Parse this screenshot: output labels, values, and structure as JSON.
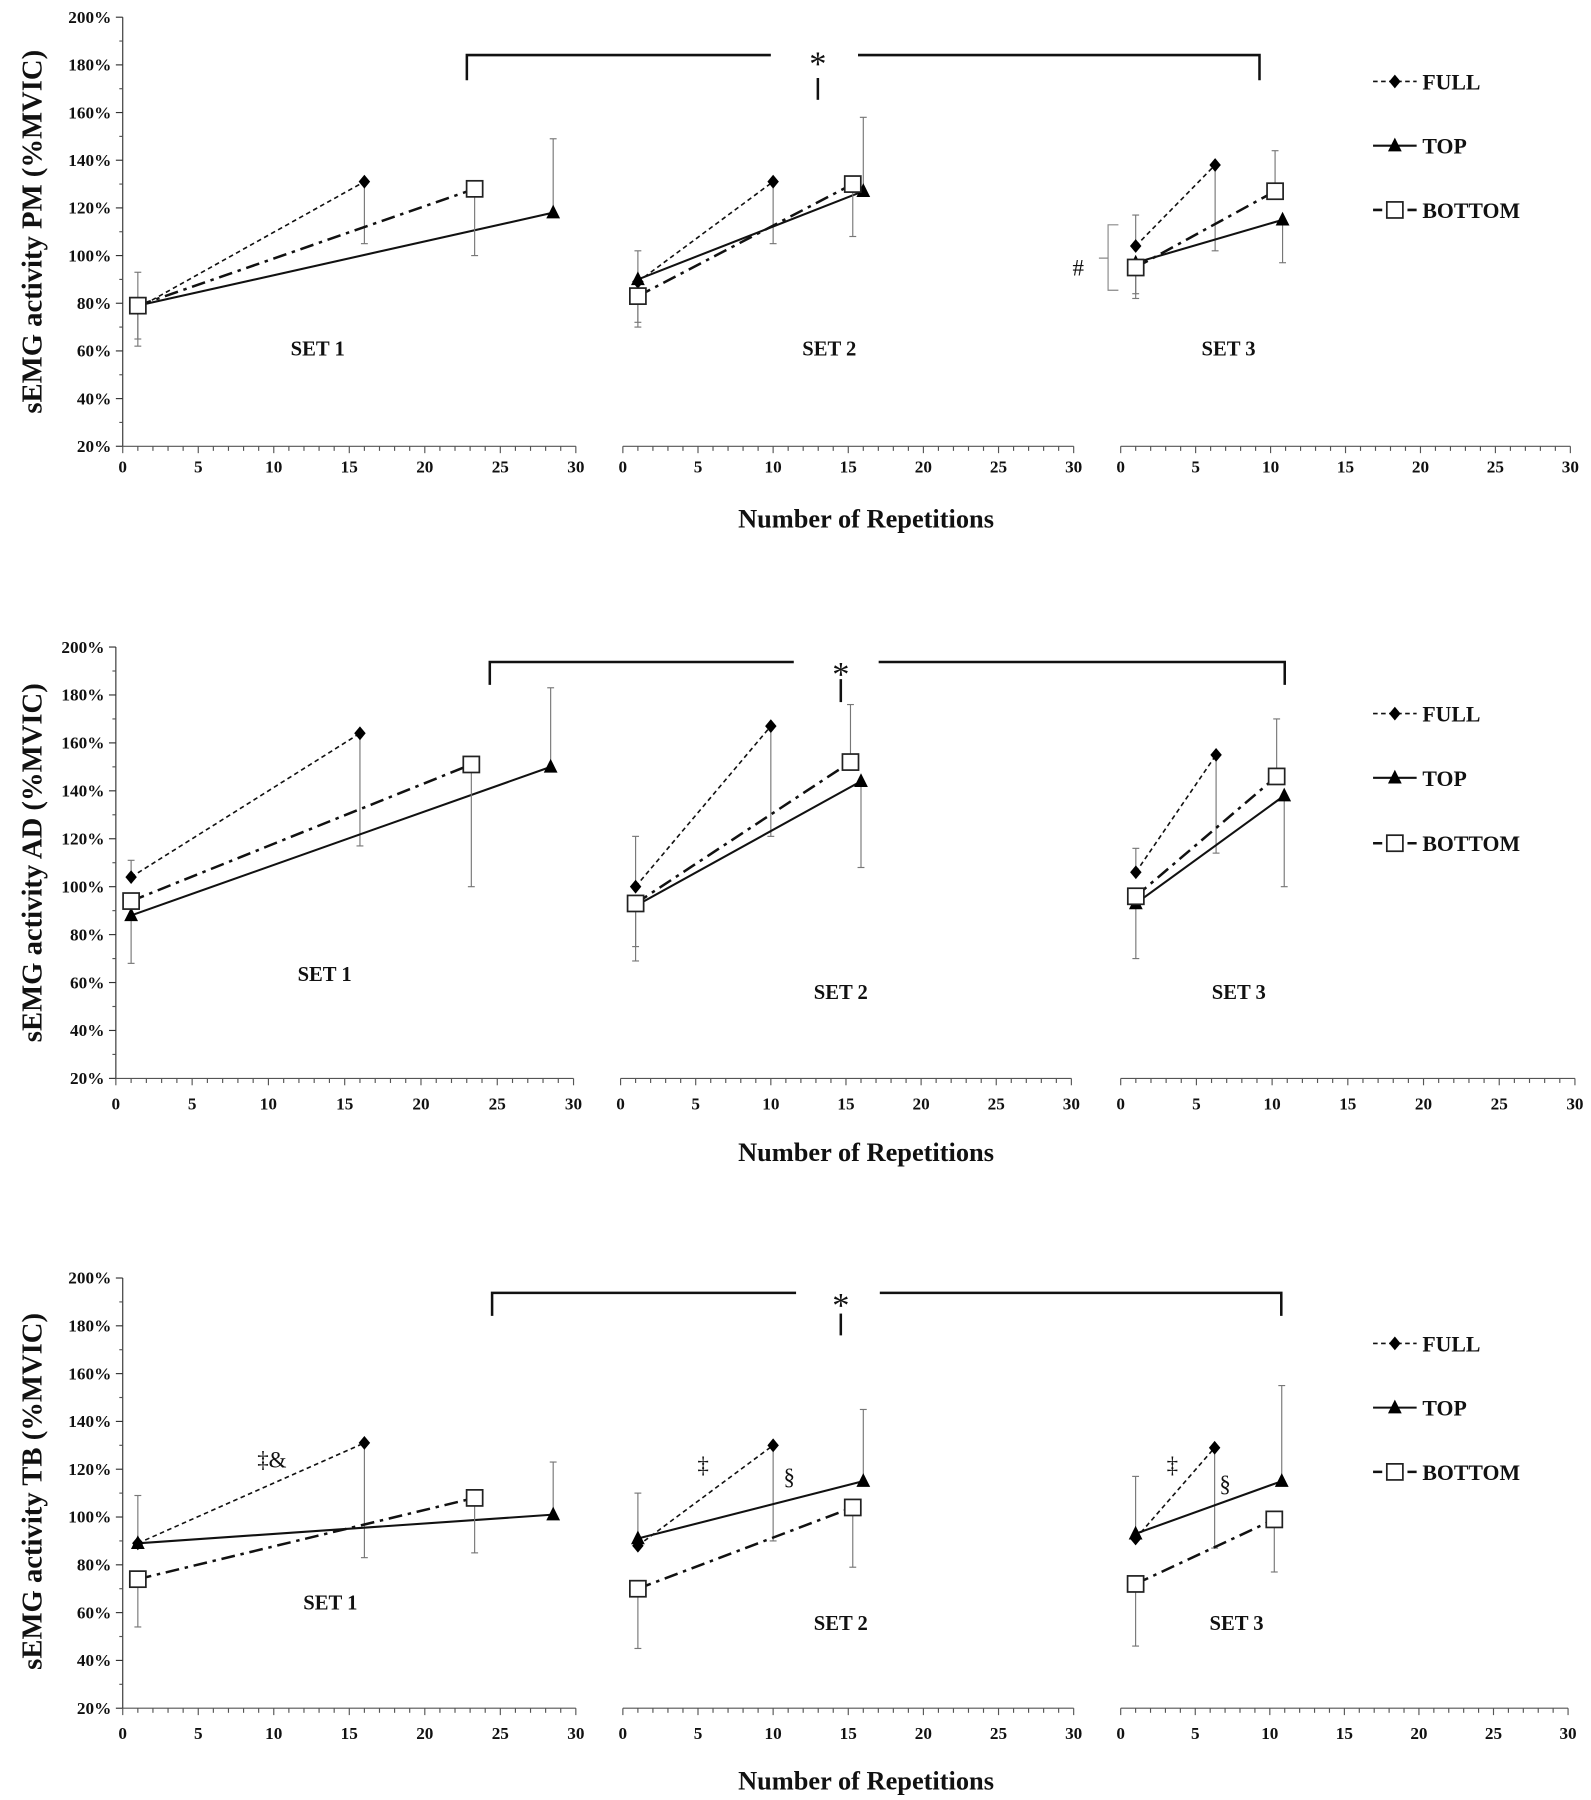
{
  "chart_data": [
    {
      "type": "line",
      "ylabel": "sEMG activity PM (%MVIC)",
      "xlabel": "Number of Repetitions",
      "ylim": [
        20,
        200
      ],
      "yticks": [
        "20%",
        "40%",
        "60%",
        "80%",
        "100%",
        "120%",
        "140%",
        "160%",
        "180%",
        "200%"
      ],
      "xlim": [
        0,
        30
      ],
      "xticks": [
        "0",
        "5",
        "10",
        "15",
        "20",
        "25",
        "30"
      ],
      "legend": [
        "FULL",
        "TOP",
        "BOTTOM"
      ],
      "legend_placement": "right",
      "significance": "*",
      "annotations": [
        {
          "text": "#",
          "set": 3
        }
      ],
      "sets": [
        {
          "label": "SET 1",
          "series": [
            {
              "name": "FULL",
              "x": [
                1,
                16
              ],
              "y": [
                78,
                131
              ],
              "err": [
                [
                  16,
                  105
                ]
              ]
            },
            {
              "name": "TOP",
              "x": [
                1,
                28.5
              ],
              "y": [
                79,
                118
              ],
              "err": [
                [
                  28.5,
                  149
                ]
              ]
            },
            {
              "name": "BOTTOM",
              "x": [
                1,
                23.3
              ],
              "y": [
                79,
                128
              ],
              "err": [
                [
                  1,
                  93
                ],
                [
                  1,
                  62
                ],
                [
                  1,
                  65
                ],
                [
                  23.3,
                  100
                ]
              ]
            }
          ]
        },
        {
          "label": "SET 2",
          "series": [
            {
              "name": "FULL",
              "x": [
                1,
                10
              ],
              "y": [
                89,
                131
              ],
              "err": [
                [
                  1,
                  102
                ],
                [
                  10,
                  105
                ]
              ]
            },
            {
              "name": "TOP",
              "x": [
                1,
                16
              ],
              "y": [
                90,
                127
              ],
              "err": [
                [
                  16,
                  158
                ]
              ]
            },
            {
              "name": "BOTTOM",
              "x": [
                1,
                15.3
              ],
              "y": [
                83,
                130
              ],
              "err": [
                [
                  1,
                  70
                ],
                [
                  1,
                  72
                ],
                [
                  15.3,
                  108
                ]
              ]
            }
          ]
        },
        {
          "label": "SET 3",
          "series": [
            {
              "name": "FULL",
              "x": [
                1,
                6.3
              ],
              "y": [
                104,
                138
              ],
              "err": [
                [
                  1,
                  117
                ],
                [
                  6.3,
                  102
                ]
              ]
            },
            {
              "name": "TOP",
              "x": [
                1,
                10.8
              ],
              "y": [
                97,
                115
              ],
              "err": [
                [
                  10.8,
                  97
                ]
              ]
            },
            {
              "name": "BOTTOM",
              "x": [
                1,
                10.3
              ],
              "y": [
                95,
                127
              ],
              "err": [
                [
                  1,
                  82
                ],
                [
                  1,
                  84
                ],
                [
                  10.3,
                  144
                ]
              ]
            }
          ]
        }
      ]
    },
    {
      "type": "line",
      "ylabel": "sEMG activity AD (%MVIC)",
      "xlabel": "Number of Repetitions",
      "ylim": [
        20,
        200
      ],
      "yticks": [
        "20%",
        "40%",
        "60%",
        "80%",
        "100%",
        "120%",
        "140%",
        "160%",
        "180%",
        "200%"
      ],
      "xlim": [
        0,
        30
      ],
      "xticks": [
        "0",
        "5",
        "10",
        "15",
        "20",
        "25",
        "30"
      ],
      "legend": [
        "FULL",
        "TOP",
        "BOTTOM"
      ],
      "legend_placement": "right",
      "significance": "*",
      "annotations": [],
      "sets": [
        {
          "label": "SET 1",
          "series": [
            {
              "name": "FULL",
              "x": [
                1,
                16
              ],
              "y": [
                104,
                164
              ],
              "err": [
                [
                  1,
                  111
                ],
                [
                  16,
                  117
                ]
              ]
            },
            {
              "name": "TOP",
              "x": [
                1,
                28.5
              ],
              "y": [
                88,
                150
              ],
              "err": [
                [
                  28.5,
                  183
                ]
              ]
            },
            {
              "name": "BOTTOM",
              "x": [
                1,
                23.3
              ],
              "y": [
                94,
                151
              ],
              "err": [
                [
                  1,
                  68
                ],
                [
                  23.3,
                  100
                ]
              ]
            }
          ]
        },
        {
          "label": "SET 2",
          "series": [
            {
              "name": "FULL",
              "x": [
                1,
                10
              ],
              "y": [
                100,
                167
              ],
              "err": [
                [
                  1,
                  121
                ],
                [
                  10,
                  121
                ]
              ]
            },
            {
              "name": "TOP",
              "x": [
                1,
                16
              ],
              "y": [
                92,
                144
              ],
              "err": [
                [
                  16,
                  108
                ]
              ]
            },
            {
              "name": "BOTTOM",
              "x": [
                1,
                15.3
              ],
              "y": [
                93,
                152
              ],
              "err": [
                [
                  1,
                  69
                ],
                [
                  1,
                  75
                ],
                [
                  15.3,
                  176
                ]
              ]
            }
          ]
        },
        {
          "label": "SET 3",
          "series": [
            {
              "name": "FULL",
              "x": [
                1,
                6.3
              ],
              "y": [
                106,
                155
              ],
              "err": [
                [
                  1,
                  116
                ],
                [
                  6.3,
                  114
                ]
              ]
            },
            {
              "name": "TOP",
              "x": [
                1,
                10.8
              ],
              "y": [
                93,
                138
              ],
              "err": [
                [
                  10.8,
                  100
                ]
              ]
            },
            {
              "name": "BOTTOM",
              "x": [
                1,
                10.3
              ],
              "y": [
                96,
                146
              ],
              "err": [
                [
                  1,
                  70
                ],
                [
                  10.3,
                  170
                ]
              ]
            }
          ]
        }
      ]
    },
    {
      "type": "line",
      "ylabel": "sEMG activity TB (%MVIC)",
      "xlabel": "Number of Repetitions",
      "ylim": [
        20,
        200
      ],
      "yticks": [
        "20%",
        "40%",
        "60%",
        "80%",
        "100%",
        "120%",
        "140%",
        "160%",
        "180%",
        "200%"
      ],
      "xlim": [
        0,
        30
      ],
      "xticks": [
        "0",
        "5",
        "10",
        "15",
        "20",
        "25",
        "30"
      ],
      "legend": [
        "FULL",
        "TOP",
        "BOTTOM"
      ],
      "legend_placement": "right",
      "significance": "*",
      "annotations": [
        {
          "text": "‡&",
          "set": 1
        },
        {
          "text": "‡",
          "set": 2
        },
        {
          "text": "§",
          "set": 2
        },
        {
          "text": "‡",
          "set": 3
        },
        {
          "text": "§",
          "set": 3
        }
      ],
      "sets": [
        {
          "label": "SET 1",
          "series": [
            {
              "name": "FULL",
              "x": [
                1,
                16
              ],
              "y": [
                89,
                131
              ],
              "err": [
                [
                  1,
                  109
                ],
                [
                  16,
                  83
                ]
              ]
            },
            {
              "name": "TOP",
              "x": [
                1,
                28.5
              ],
              "y": [
                89,
                101
              ],
              "err": [
                [
                  28.5,
                  123
                ]
              ]
            },
            {
              "name": "BOTTOM",
              "x": [
                1,
                23.3
              ],
              "y": [
                74,
                108
              ],
              "err": [
                [
                  1,
                  54
                ],
                [
                  23.3,
                  85
                ]
              ]
            }
          ]
        },
        {
          "label": "SET 2",
          "series": [
            {
              "name": "FULL",
              "x": [
                1,
                10
              ],
              "y": [
                88,
                130
              ],
              "err": [
                [
                  1,
                  110
                ],
                [
                  10,
                  90
                ]
              ]
            },
            {
              "name": "TOP",
              "x": [
                1,
                16
              ],
              "y": [
                91,
                115
              ],
              "err": [
                [
                  16,
                  145
                ]
              ]
            },
            {
              "name": "BOTTOM",
              "x": [
                1,
                15.3
              ],
              "y": [
                70,
                104
              ],
              "err": [
                [
                  1,
                  45
                ],
                [
                  15.3,
                  79
                ]
              ]
            }
          ]
        },
        {
          "label": "SET 3",
          "series": [
            {
              "name": "FULL",
              "x": [
                1,
                6.3
              ],
              "y": [
                91,
                129
              ],
              "err": [
                [
                  1,
                  117
                ],
                [
                  6.3,
                  87
                ]
              ]
            },
            {
              "name": "TOP",
              "x": [
                1,
                10.8
              ],
              "y": [
                93,
                115
              ],
              "err": [
                [
                  10.8,
                  155
                ]
              ]
            },
            {
              "name": "BOTTOM",
              "x": [
                1,
                10.3
              ],
              "y": [
                72,
                99
              ],
              "err": [
                [
                  1,
                  46
                ],
                [
                  10.3,
                  77
                ]
              ]
            }
          ]
        }
      ]
    }
  ]
}
